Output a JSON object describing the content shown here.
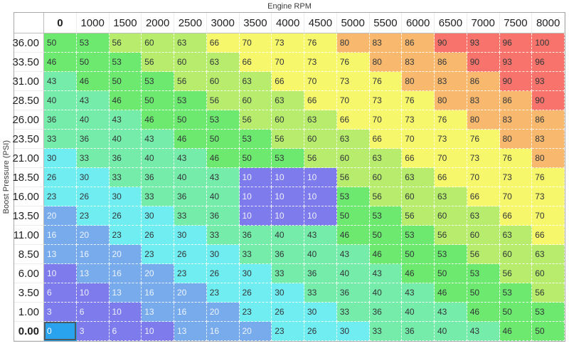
{
  "axes": {
    "x_title": "Engine RPM",
    "y_title": "Boost Pressure (PSI)"
  },
  "table": {
    "column_headers": [
      "0",
      "1000",
      "1500",
      "2000",
      "2500",
      "3000",
      "3500",
      "4000",
      "4500",
      "5000",
      "5500",
      "6000",
      "6500",
      "7000",
      "7500",
      "8000"
    ],
    "row_headers": [
      "36.00",
      "33.50",
      "31.00",
      "28.50",
      "26.00",
      "23.50",
      "21.00",
      "18.50",
      "16.00",
      "13.50",
      "11.00",
      "8.50",
      "6.00",
      "3.50",
      "1.00",
      "0.00"
    ],
    "values": [
      [
        50,
        53,
        56,
        60,
        63,
        66,
        70,
        73,
        76,
        80,
        83,
        86,
        90,
        93,
        96,
        100
      ],
      [
        46,
        50,
        53,
        56,
        60,
        63,
        66,
        70,
        73,
        76,
        80,
        83,
        86,
        90,
        93,
        96
      ],
      [
        43,
        46,
        50,
        53,
        56,
        60,
        63,
        66,
        70,
        73,
        76,
        80,
        83,
        86,
        90,
        93
      ],
      [
        40,
        43,
        46,
        50,
        53,
        56,
        60,
        63,
        66,
        70,
        73,
        76,
        80,
        83,
        86,
        90
      ],
      [
        36,
        40,
        43,
        46,
        50,
        53,
        56,
        60,
        63,
        66,
        70,
        73,
        76,
        80,
        83,
        86
      ],
      [
        33,
        36,
        40,
        43,
        46,
        50,
        53,
        56,
        60,
        63,
        66,
        70,
        73,
        76,
        80,
        83
      ],
      [
        30,
        33,
        36,
        40,
        43,
        46,
        50,
        53,
        56,
        60,
        63,
        66,
        70,
        73,
        76,
        80
      ],
      [
        26,
        30,
        33,
        36,
        40,
        43,
        10,
        10,
        10,
        56,
        60,
        63,
        66,
        70,
        73,
        76
      ],
      [
        23,
        26,
        30,
        33,
        36,
        40,
        10,
        10,
        10,
        53,
        56,
        60,
        63,
        66,
        70,
        73
      ],
      [
        20,
        23,
        26,
        30,
        33,
        36,
        10,
        10,
        10,
        50,
        53,
        56,
        60,
        63,
        66,
        70
      ],
      [
        16,
        20,
        23,
        26,
        30,
        33,
        36,
        40,
        43,
        46,
        50,
        53,
        56,
        60,
        63,
        66
      ],
      [
        13,
        16,
        20,
        23,
        26,
        30,
        33,
        36,
        40,
        43,
        46,
        50,
        53,
        56,
        60,
        63
      ],
      [
        10,
        13,
        16,
        20,
        23,
        26,
        30,
        33,
        36,
        40,
        43,
        46,
        50,
        53,
        56,
        60
      ],
      [
        6,
        10,
        13,
        16,
        20,
        23,
        26,
        30,
        33,
        36,
        40,
        43,
        46,
        50,
        53,
        56
      ],
      [
        3,
        6,
        10,
        13,
        16,
        20,
        23,
        26,
        30,
        33,
        36,
        40,
        43,
        46,
        50,
        53
      ],
      [
        0,
        3,
        6,
        10,
        13,
        16,
        20,
        23,
        26,
        30,
        33,
        36,
        40,
        43,
        46,
        50
      ]
    ],
    "selected": {
      "row_index": 15,
      "col_index": 0,
      "row_label": "0.00",
      "col_label": "0",
      "value": 0
    }
  },
  "colors": {
    "scale": [
      {
        "max": 0,
        "bg": "#29a3ee",
        "text": "#ffffff"
      },
      {
        "max": 12,
        "bg": "#7e7cec",
        "text": "#eef0ff"
      },
      {
        "max": 22,
        "bg": "#77abec",
        "text": "#eef4ff"
      },
      {
        "max": 32,
        "bg": "#70edf0",
        "text": "#323638"
      },
      {
        "max": 45,
        "bg": "#75ecaa",
        "text": "#323638"
      },
      {
        "max": 55,
        "bg": "#6ce96e",
        "text": "#323638"
      },
      {
        "max": 65,
        "bg": "#b7ec6c",
        "text": "#323638"
      },
      {
        "max": 79,
        "bg": "#f7f76b",
        "text": "#323638"
      },
      {
        "max": 88,
        "bg": "#f8b86e",
        "text": "#323638"
      },
      {
        "max": 100,
        "bg": "#f7736b",
        "text": "#323638"
      }
    ],
    "selected_border": "#4c5a63",
    "grid_border": "#a9a9a9"
  }
}
